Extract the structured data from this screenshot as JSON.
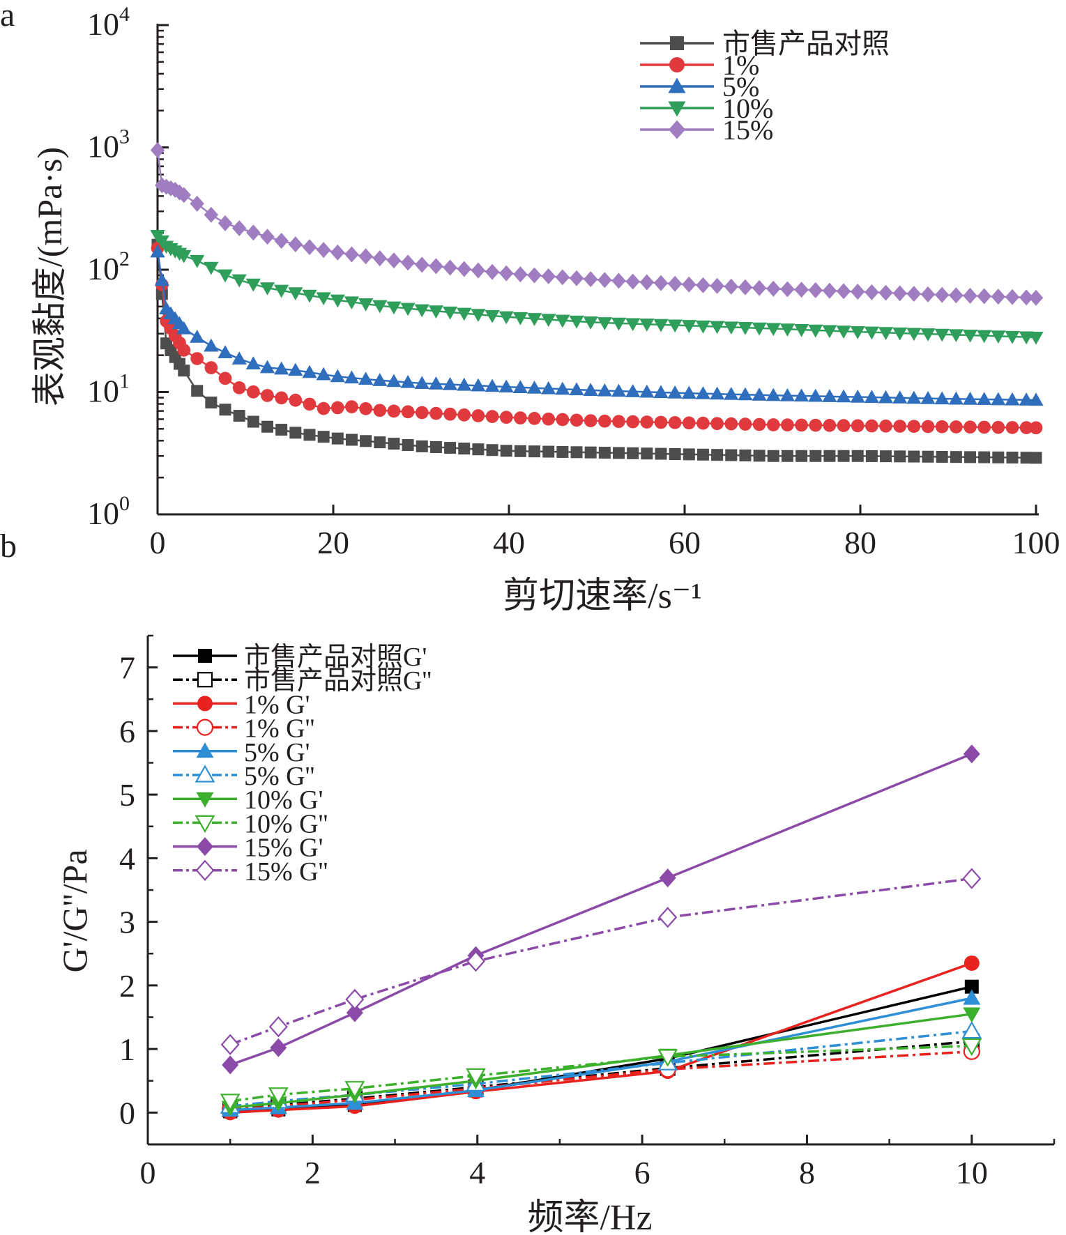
{
  "panels": {
    "a_label": "a",
    "b_label": "b"
  },
  "chart_data": [
    {
      "type": "line",
      "panel": "a",
      "xlabel": "剪切速率/s⁻¹",
      "ylabel": "表观黏度/(mPa·s)",
      "xlim": [
        0,
        100
      ],
      "ylim": [
        1,
        10000
      ],
      "yscale": "log",
      "xticks": [
        "0",
        "20",
        "40",
        "60",
        "80",
        "100"
      ],
      "yticks": [
        {
          "base": "10",
          "exp": "0",
          "value": 1
        },
        {
          "base": "10",
          "exp": "1",
          "value": 10
        },
        {
          "base": "10",
          "exp": "2",
          "value": 100
        },
        {
          "base": "10",
          "exp": "3",
          "value": 1000
        },
        {
          "base": "10",
          "exp": "4",
          "value": 10000
        }
      ],
      "legend_position": "top-right",
      "grid": false,
      "series": [
        {
          "name": "市售产品对照",
          "color": "#4d4d4d",
          "marker": "square",
          "anchors": [
            [
              0,
              160
            ],
            [
              1,
              25
            ],
            [
              2.5,
              17
            ],
            [
              5,
              9
            ],
            [
              8,
              7
            ],
            [
              12,
              5.3
            ],
            [
              16,
              4.6
            ],
            [
              20,
              4.2
            ],
            [
              25,
              3.9
            ],
            [
              30,
              3.6
            ],
            [
              40,
              3.3
            ],
            [
              50,
              3.2
            ],
            [
              60,
              3.1
            ],
            [
              70,
              3.0
            ],
            [
              80,
              3.0
            ],
            [
              90,
              2.95
            ],
            [
              100,
              2.9
            ]
          ]
        },
        {
          "name": "1%",
          "color": "#e0393e",
          "marker": "circle",
          "anchors": [
            [
              0,
              150
            ],
            [
              1,
              38
            ],
            [
              3,
              22
            ],
            [
              6,
              16
            ],
            [
              9,
              11
            ],
            [
              12,
              9.5
            ],
            [
              16,
              8.5
            ],
            [
              19,
              7.3
            ],
            [
              22,
              7.6
            ],
            [
              25,
              7.1
            ],
            [
              30,
              6.8
            ],
            [
              40,
              6.2
            ],
            [
              50,
              5.8
            ],
            [
              60,
              5.6
            ],
            [
              70,
              5.4
            ],
            [
              80,
              5.3
            ],
            [
              90,
              5.2
            ],
            [
              100,
              5.1
            ]
          ]
        },
        {
          "name": "5%",
          "color": "#2e6ebd",
          "marker": "triangle-up",
          "anchors": [
            [
              0,
              140
            ],
            [
              1,
              48
            ],
            [
              3,
              33
            ],
            [
              6,
              24
            ],
            [
              9,
              19
            ],
            [
              12,
              16
            ],
            [
              16,
              15
            ],
            [
              20,
              13.5
            ],
            [
              25,
              12.5
            ],
            [
              30,
              11.8
            ],
            [
              40,
              11
            ],
            [
              50,
              10.3
            ],
            [
              60,
              9.8
            ],
            [
              70,
              9.4
            ],
            [
              80,
              9.1
            ],
            [
              90,
              8.8
            ],
            [
              100,
              8.6
            ]
          ]
        },
        {
          "name": "10%",
          "color": "#2f9e5b",
          "marker": "triangle-down",
          "anchors": [
            [
              0,
              190
            ],
            [
              1,
              155
            ],
            [
              3,
              130
            ],
            [
              5,
              115
            ],
            [
              8,
              88
            ],
            [
              12,
              72
            ],
            [
              16,
              64
            ],
            [
              20,
              57
            ],
            [
              25,
              51
            ],
            [
              30,
              47
            ],
            [
              40,
              41
            ],
            [
              50,
              37
            ],
            [
              60,
              35
            ],
            [
              70,
              33
            ],
            [
              80,
              31
            ],
            [
              90,
              29.5
            ],
            [
              100,
              28
            ]
          ]
        },
        {
          "name": "15%",
          "color": "#a07cc0",
          "marker": "diamond",
          "anchors": [
            [
              0,
              950
            ],
            [
              0.5,
              490
            ],
            [
              2,
              450
            ],
            [
              4,
              370
            ],
            [
              7,
              250
            ],
            [
              10,
              210
            ],
            [
              15,
              165
            ],
            [
              20,
              140
            ],
            [
              25,
              125
            ],
            [
              30,
              110
            ],
            [
              40,
              93
            ],
            [
              50,
              83
            ],
            [
              60,
              76
            ],
            [
              70,
              70
            ],
            [
              80,
              66
            ],
            [
              90,
              62
            ],
            [
              100,
              59
            ]
          ]
        }
      ]
    },
    {
      "type": "line",
      "panel": "b",
      "xlabel": "频率/Hz",
      "ylabel": "G'/G''/Pa",
      "xlim": [
        0,
        11
      ],
      "ylim": [
        -0.5,
        7.5
      ],
      "xticks": [
        "0",
        "2",
        "4",
        "6",
        "8",
        "10"
      ],
      "yticks": [
        "0",
        "1",
        "2",
        "3",
        "4",
        "5",
        "6",
        "7"
      ],
      "legend_position": "top-left",
      "grid": false,
      "x": [
        1,
        1.585,
        2.512,
        3.981,
        6.31,
        10
      ],
      "series": [
        {
          "name": "市售产品对照G'",
          "color": "#000000",
          "marker": "square",
          "filled": true,
          "dash": "solid",
          "values": [
            0.02,
            0.05,
            0.12,
            0.35,
            0.85,
            1.98
          ]
        },
        {
          "name": "市售产品对照G''",
          "color": "#000000",
          "marker": "square",
          "filled": false,
          "dash": "dashdot",
          "values": [
            0.05,
            0.12,
            0.22,
            0.4,
            0.7,
            1.12
          ]
        },
        {
          "name": "1% G'",
          "color": "#e8221e",
          "marker": "circle",
          "filled": true,
          "dash": "solid",
          "values": [
            0.0,
            0.04,
            0.1,
            0.33,
            0.65,
            2.35
          ]
        },
        {
          "name": "1% G''",
          "color": "#e8221e",
          "marker": "circle",
          "filled": false,
          "dash": "dashdot",
          "values": [
            0.05,
            0.1,
            0.2,
            0.38,
            0.68,
            0.96
          ]
        },
        {
          "name": "5% G'",
          "color": "#2f8fd6",
          "marker": "triangle-up",
          "filled": true,
          "dash": "solid",
          "values": [
            0.04,
            0.08,
            0.15,
            0.35,
            0.8,
            1.8
          ]
        },
        {
          "name": "5% G''",
          "color": "#2f8fd6",
          "marker": "triangle-up",
          "filled": false,
          "dash": "dashdot",
          "values": [
            0.1,
            0.18,
            0.28,
            0.45,
            0.78,
            1.28
          ]
        },
        {
          "name": "10% G'",
          "color": "#3cb02c",
          "marker": "triangle-down",
          "filled": true,
          "dash": "solid",
          "values": [
            0.08,
            0.15,
            0.28,
            0.5,
            0.9,
            1.55
          ]
        },
        {
          "name": "10% G''",
          "color": "#3cb02c",
          "marker": "triangle-down",
          "filled": false,
          "dash": "dashdot",
          "values": [
            0.18,
            0.28,
            0.38,
            0.58,
            0.88,
            1.05
          ]
        },
        {
          "name": "15% G'",
          "color": "#8b4aa8",
          "marker": "diamond",
          "filled": true,
          "dash": "solid",
          "values": [
            0.75,
            1.02,
            1.57,
            2.47,
            3.69,
            5.64
          ]
        },
        {
          "name": "15% G''",
          "color": "#8b4aa8",
          "marker": "diamond",
          "filled": false,
          "dash": "dashdot",
          "values": [
            1.07,
            1.35,
            1.78,
            2.38,
            3.07,
            3.68
          ]
        }
      ]
    }
  ]
}
